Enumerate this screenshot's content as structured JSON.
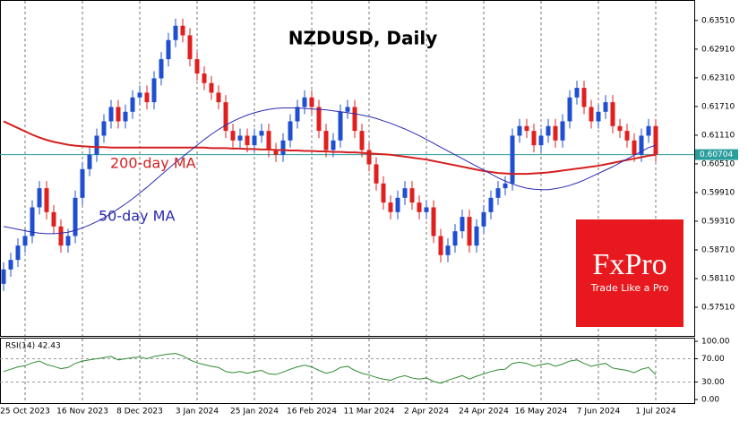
{
  "chart_data": {
    "type": "candlestick",
    "title": "NZDUSD, Daily",
    "categories": [
      null,
      null,
      null,
      "25 Oct 2023",
      null,
      null,
      null,
      null,
      null,
      null,
      null,
      "16 Nov 2023",
      null,
      null,
      null,
      null,
      null,
      null,
      null,
      "8 Dec 2023",
      null,
      null,
      null,
      null,
      null,
      null,
      null,
      "3 Jan 2024",
      null,
      null,
      null,
      null,
      null,
      null,
      null,
      "25 Jan 2024",
      null,
      null,
      null,
      null,
      null,
      null,
      null,
      "16 Feb 2024",
      null,
      null,
      null,
      null,
      null,
      null,
      null,
      "11 Mar 2024",
      null,
      null,
      null,
      null,
      null,
      null,
      null,
      "2 Apr 2024",
      null,
      null,
      null,
      null,
      null,
      null,
      null,
      "24 Apr 2024",
      null,
      null,
      null,
      null,
      null,
      null,
      null,
      "16 May 2024",
      null,
      null,
      null,
      null,
      null,
      null,
      null,
      "7 Jun 2024",
      null,
      null,
      null,
      null,
      null,
      null,
      null,
      "1 Jul 2024"
    ],
    "open": [
      0.58,
      0.583,
      0.585,
      0.588,
      0.59,
      0.596,
      0.6,
      0.595,
      0.592,
      0.588,
      0.59,
      0.598,
      0.604,
      0.607,
      0.611,
      0.614,
      0.617,
      0.614,
      0.616,
      0.619,
      0.62,
      0.618,
      0.623,
      0.627,
      0.631,
      0.634,
      0.632,
      0.627,
      0.624,
      0.622,
      0.62,
      0.618,
      0.612,
      0.61,
      0.611,
      0.609,
      0.611,
      0.612,
      0.608,
      0.607,
      0.61,
      0.614,
      0.617,
      0.619,
      0.617,
      0.612,
      0.608,
      0.61,
      0.616,
      0.617,
      0.612,
      0.608,
      0.605,
      0.601,
      0.597,
      0.595,
      0.598,
      0.6,
      0.597,
      0.595,
      0.596,
      0.59,
      0.586,
      0.588,
      0.591,
      0.594,
      0.588,
      0.592,
      0.595,
      0.598,
      0.6,
      0.601,
      0.611,
      0.613,
      0.612,
      0.609,
      0.611,
      0.613,
      0.61,
      0.614,
      0.619,
      0.621,
      0.617,
      0.614,
      0.616,
      0.618,
      0.613,
      0.612,
      0.61,
      0.607,
      0.611,
      0.613
    ],
    "high": [
      0.5845,
      0.5865,
      0.5895,
      0.5915,
      0.5975,
      0.6015,
      0.6015,
      0.5965,
      0.5935,
      0.5915,
      0.5995,
      0.6055,
      0.6085,
      0.6125,
      0.6155,
      0.6185,
      0.6185,
      0.6175,
      0.6205,
      0.6215,
      0.6215,
      0.6245,
      0.6285,
      0.6325,
      0.6355,
      0.6355,
      0.6335,
      0.6285,
      0.6255,
      0.6235,
      0.6215,
      0.6195,
      0.6135,
      0.6125,
      0.6125,
      0.6125,
      0.6135,
      0.6135,
      0.6095,
      0.6115,
      0.6155,
      0.6185,
      0.6205,
      0.6205,
      0.6185,
      0.6135,
      0.6115,
      0.6175,
      0.6185,
      0.6185,
      0.6135,
      0.6095,
      0.6065,
      0.6025,
      0.5985,
      0.5995,
      0.6015,
      0.6015,
      0.5985,
      0.5975,
      0.5975,
      0.5915,
      0.5895,
      0.5925,
      0.5955,
      0.5955,
      0.5935,
      0.5965,
      0.5995,
      0.6015,
      0.6025,
      0.6125,
      0.6145,
      0.6145,
      0.6135,
      0.6125,
      0.6145,
      0.6145,
      0.6155,
      0.6205,
      0.6225,
      0.6225,
      0.6185,
      0.6175,
      0.6195,
      0.6195,
      0.6145,
      0.6135,
      0.6115,
      0.6125,
      0.6145,
      0.6145
    ],
    "low": [
      0.5785,
      0.5815,
      0.5835,
      0.5865,
      0.5885,
      0.5945,
      0.5935,
      0.5905,
      0.5865,
      0.5865,
      0.5885,
      0.5965,
      0.6025,
      0.6055,
      0.6095,
      0.6125,
      0.6125,
      0.6125,
      0.6145,
      0.6175,
      0.6165,
      0.6165,
      0.6215,
      0.6255,
      0.6295,
      0.6305,
      0.6255,
      0.6225,
      0.6205,
      0.6185,
      0.6165,
      0.6105,
      0.6085,
      0.6085,
      0.6075,
      0.6075,
      0.6095,
      0.6065,
      0.6055,
      0.6055,
      0.6085,
      0.6125,
      0.6155,
      0.6155,
      0.6105,
      0.6065,
      0.6065,
      0.6085,
      0.6145,
      0.6105,
      0.6065,
      0.6035,
      0.5995,
      0.5955,
      0.5935,
      0.5935,
      0.5965,
      0.5955,
      0.5935,
      0.5935,
      0.5885,
      0.5845,
      0.5845,
      0.5865,
      0.5895,
      0.5865,
      0.5865,
      0.5905,
      0.5935,
      0.5965,
      0.5985,
      0.5995,
      0.6095,
      0.6105,
      0.6075,
      0.6075,
      0.6095,
      0.6085,
      0.6085,
      0.6125,
      0.6175,
      0.6155,
      0.6125,
      0.6125,
      0.6145,
      0.6115,
      0.6105,
      0.6085,
      0.6055,
      0.6055,
      0.6095,
      0.6055
    ],
    "close": [
      0.583,
      0.585,
      0.588,
      0.59,
      0.596,
      0.6,
      0.595,
      0.592,
      0.588,
      0.59,
      0.598,
      0.604,
      0.607,
      0.611,
      0.614,
      0.617,
      0.614,
      0.616,
      0.619,
      0.62,
      0.618,
      0.623,
      0.627,
      0.631,
      0.634,
      0.632,
      0.627,
      0.624,
      0.622,
      0.62,
      0.618,
      0.612,
      0.61,
      0.611,
      0.609,
      0.611,
      0.612,
      0.608,
      0.607,
      0.61,
      0.614,
      0.617,
      0.619,
      0.617,
      0.612,
      0.608,
      0.61,
      0.616,
      0.617,
      0.612,
      0.608,
      0.605,
      0.601,
      0.597,
      0.595,
      0.598,
      0.6,
      0.597,
      0.595,
      0.596,
      0.59,
      0.586,
      0.588,
      0.591,
      0.594,
      0.588,
      0.592,
      0.595,
      0.598,
      0.6,
      0.601,
      0.611,
      0.613,
      0.612,
      0.609,
      0.611,
      0.613,
      0.61,
      0.614,
      0.619,
      0.621,
      0.617,
      0.614,
      0.616,
      0.618,
      0.613,
      0.612,
      0.61,
      0.607,
      0.611,
      0.613,
      0.60704
    ],
    "up_color": "#1f4fd0",
    "down_color": "#e01f1f",
    "ylim": [
      0.5691,
      0.6392
    ],
    "yticks": [
      {
        "value": 0.5751,
        "label": "0.57510"
      },
      {
        "value": 0.5811,
        "label": "0.58110"
      },
      {
        "value": 0.5871,
        "label": "0.58710"
      },
      {
        "value": 0.5931,
        "label": "0.59310"
      },
      {
        "value": 0.5991,
        "label": "0.59910"
      },
      {
        "value": 0.6051,
        "label": "0.60510"
      },
      {
        "value": 0.6111,
        "label": "0.61110"
      },
      {
        "value": 0.6171,
        "label": "0.61710"
      },
      {
        "value": 0.6231,
        "label": "0.62310"
      },
      {
        "value": 0.6291,
        "label": "0.62910"
      },
      {
        "value": 0.6351,
        "label": "0.63510"
      }
    ],
    "grid": true,
    "current_price": {
      "value": 0.60704,
      "label": "0.60704",
      "color": "#2a9d9d"
    },
    "series": [
      {
        "name": "200-day MA",
        "color": "#d42020",
        "values": [
          0.614,
          0.6133,
          0.6126,
          0.6119,
          0.6112,
          0.6106,
          0.6101,
          0.6097,
          0.6094,
          0.6091,
          0.6089,
          0.6088,
          0.6087,
          0.6086,
          0.6086,
          0.6085,
          0.6085,
          0.6085,
          0.6085,
          0.6085,
          0.6085,
          0.6085,
          0.6085,
          0.6085,
          0.6085,
          0.6085,
          0.6085,
          0.6085,
          0.6085,
          0.6084,
          0.6084,
          0.6084,
          0.6083,
          0.6083,
          0.6082,
          0.6082,
          0.6081,
          0.6081,
          0.608,
          0.608,
          0.6079,
          0.6079,
          0.6078,
          0.6078,
          0.6077,
          0.6077,
          0.6076,
          0.6076,
          0.6075,
          0.6075,
          0.6074,
          0.6073,
          0.6072,
          0.6071,
          0.607,
          0.6068,
          0.6066,
          0.6064,
          0.6062,
          0.606,
          0.6057,
          0.6054,
          0.6051,
          0.6048,
          0.6045,
          0.6042,
          0.6039,
          0.6036,
          0.6034,
          0.6032,
          0.6031,
          0.603,
          0.603,
          0.603,
          0.6031,
          0.6032,
          0.6033,
          0.6035,
          0.6037,
          0.6039,
          0.6041,
          0.6043,
          0.6045,
          0.6047,
          0.605,
          0.6053,
          0.6056,
          0.6059,
          0.6062,
          0.6065,
          0.6068,
          0.607
        ]
      },
      {
        "name": "50-day MA",
        "color": "#2a2ab0",
        "values": [
          0.592,
          0.5917,
          0.5914,
          0.5911,
          0.5908,
          0.5906,
          0.5905,
          0.5905,
          0.5906,
          0.5908,
          0.5912,
          0.5917,
          0.5923,
          0.593,
          0.5938,
          0.5947,
          0.5957,
          0.5967,
          0.5978,
          0.599,
          0.6002,
          0.6015,
          0.6028,
          0.6041,
          0.6054,
          0.6066,
          0.6078,
          0.609,
          0.6102,
          0.6113,
          0.6123,
          0.6132,
          0.614,
          0.6147,
          0.6153,
          0.6158,
          0.6162,
          0.6165,
          0.6167,
          0.6168,
          0.6168,
          0.6168,
          0.6167,
          0.6166,
          0.6165,
          0.6164,
          0.6162,
          0.616,
          0.6158,
          0.6156,
          0.6153,
          0.615,
          0.6146,
          0.6141,
          0.6136,
          0.613,
          0.6124,
          0.6117,
          0.611,
          0.6102,
          0.6094,
          0.6086,
          0.6078,
          0.607,
          0.6062,
          0.6054,
          0.6046,
          0.6038,
          0.603,
          0.6022,
          0.6015,
          0.6009,
          0.6004,
          0.6,
          0.5998,
          0.5997,
          0.5997,
          0.5999,
          0.6002,
          0.6006,
          0.6011,
          0.6017,
          0.6024,
          0.6031,
          0.6038,
          0.6045,
          0.6053,
          0.6061,
          0.6069,
          0.6077,
          0.6085,
          0.609
        ]
      }
    ],
    "rsi": {
      "label": "RSI(14) 42.43",
      "color": "#2e8b2e",
      "ylim": [
        0,
        100
      ],
      "yticks": [
        {
          "value": 100,
          "label": "100.00"
        },
        {
          "value": 70,
          "label": "70.00"
        },
        {
          "value": 30,
          "label": "30.00"
        },
        {
          "value": 0,
          "label": "0.00"
        }
      ],
      "values": [
        48,
        52,
        56,
        58,
        63,
        66,
        60,
        57,
        53,
        55,
        62,
        66,
        68,
        70,
        72,
        74,
        68,
        70,
        72,
        73,
        70,
        74,
        76,
        78,
        79,
        75,
        68,
        63,
        60,
        57,
        55,
        48,
        46,
        48,
        45,
        48,
        50,
        44,
        43,
        47,
        52,
        56,
        59,
        56,
        50,
        45,
        48,
        55,
        57,
        50,
        45,
        42,
        38,
        35,
        33,
        38,
        41,
        37,
        35,
        37,
        31,
        28,
        33,
        37,
        41,
        35,
        40,
        44,
        48,
        51,
        52,
        62,
        64,
        62,
        57,
        60,
        62,
        57,
        61,
        66,
        68,
        62,
        57,
        60,
        62,
        54,
        52,
        50,
        46,
        52,
        55,
        42.43
      ]
    },
    "logo": {
      "brand": "FxPro",
      "tagline": "Trade Like a Pro"
    }
  }
}
